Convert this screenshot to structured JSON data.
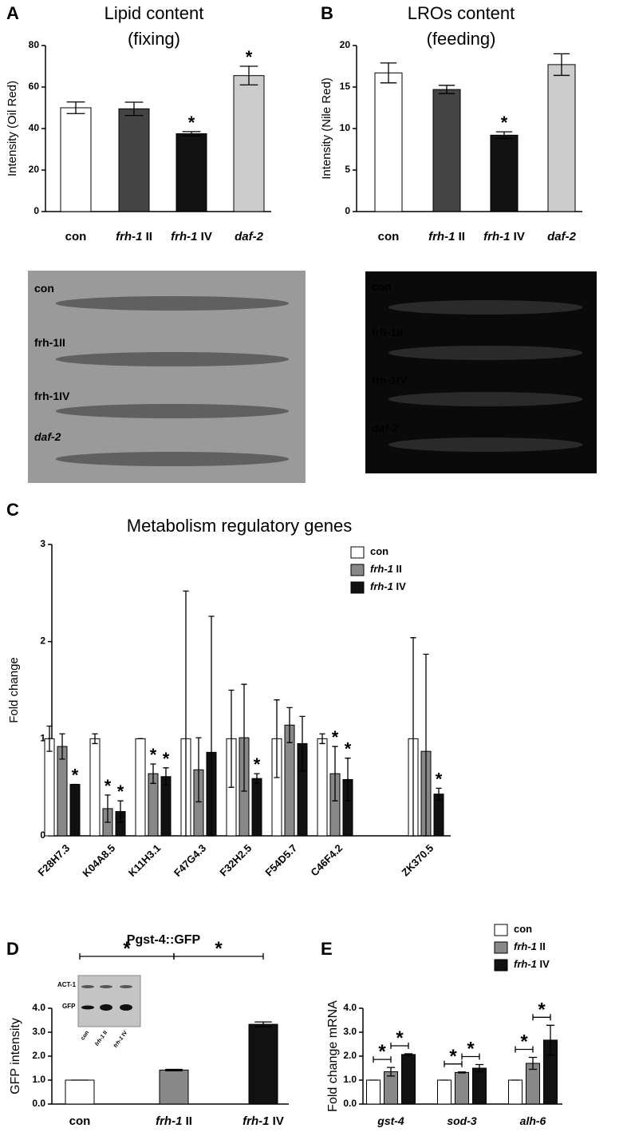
{
  "chart_data": [
    {
      "type": "bar",
      "panel": "A",
      "title": [
        "Lipid content",
        "(fixing)"
      ],
      "y_label": "Intensity (Oil Red)",
      "categories": [
        "con",
        "frh-1 II",
        "frh-1 IV",
        "daf-2"
      ],
      "values": [
        50,
        49.5,
        37.5,
        65.5
      ],
      "errors": [
        2.8,
        3.2,
        1,
        4.5
      ],
      "colors": [
        "#ffffff",
        "#444444",
        "#111111",
        "#cccccc"
      ],
      "ylim": [
        0,
        80
      ],
      "yticks": [
        0,
        20,
        40,
        60,
        80
      ],
      "annotations": [
        {
          "text": "*",
          "category": 2
        },
        {
          "text": "*",
          "category": 3
        }
      ],
      "image_labels": [
        "con",
        "frh-1II",
        "frh-1IV",
        "daf-2"
      ]
    },
    {
      "type": "bar",
      "panel": "B",
      "title": [
        "LROs content",
        "(feeding)"
      ],
      "y_label": "Intensity (Nile Red)",
      "categories": [
        "con",
        "frh-1 II",
        "frh-1 IV",
        "daf-2"
      ],
      "values": [
        16.7,
        14.7,
        9.2,
        17.7
      ],
      "errors": [
        1.2,
        0.5,
        0.4,
        1.3
      ],
      "colors": [
        "#ffffff",
        "#444444",
        "#111111",
        "#cccccc"
      ],
      "ylim": [
        0,
        20
      ],
      "yticks": [
        0,
        5,
        10,
        15,
        20
      ],
      "annotations": [
        {
          "text": "*",
          "category": 2
        }
      ],
      "image_labels": [
        "con",
        "frh-1II",
        "frh-1IV",
        "daf-2"
      ]
    },
    {
      "type": "bar",
      "panel": "C",
      "title": [
        "Metabolism regulatory genes"
      ],
      "y_label": "Fold change",
      "categories": [
        "F28H7.3",
        "K04A8.5",
        "K11H3.1",
        "F47G4.3",
        "F32H2.5",
        "F54D5.7",
        "C46F4.2",
        null,
        "ZK370.5"
      ],
      "series": [
        {
          "name": "con",
          "color": "#ffffff",
          "values": [
            1.0,
            1.0,
            1.0,
            1.0,
            1.0,
            1.0,
            1.0,
            null,
            1.0
          ],
          "errors": [
            0.13,
            0.05,
            0,
            1.52,
            0.5,
            0.4,
            0.05,
            null,
            1.04
          ]
        },
        {
          "name": "frh-1 II",
          "color": "#888888",
          "values": [
            0.92,
            0.28,
            0.64,
            0.68,
            1.01,
            1.14,
            0.64,
            null,
            0.87
          ],
          "errors": [
            0.13,
            0.14,
            0.1,
            0.33,
            0.55,
            0.18,
            0.28,
            null,
            1.0
          ]
        },
        {
          "name": "frh-1 IV",
          "color": "#111111",
          "values": [
            0.53,
            0.25,
            0.61,
            0.86,
            0.59,
            0.95,
            0.58,
            null,
            0.43
          ],
          "errors": [
            0,
            0.11,
            0.09,
            1.4,
            0.05,
            0.28,
            0.22,
            null,
            0.06
          ]
        }
      ],
      "ylim": [
        0,
        3
      ],
      "yticks": [
        0,
        1,
        2,
        3
      ],
      "legend": "upper right",
      "annotations": [
        {
          "text": "*",
          "category": 0,
          "series": 2
        },
        {
          "text": "*",
          "category": 1,
          "series": 1
        },
        {
          "text": "*",
          "category": 1,
          "series": 2
        },
        {
          "text": "*",
          "category": 2,
          "series": 1
        },
        {
          "text": "*",
          "category": 2,
          "series": 2
        },
        {
          "text": "*",
          "category": 4,
          "series": 2
        },
        {
          "text": "*",
          "category": 6,
          "series": 1
        },
        {
          "text": "*",
          "category": 6,
          "series": 2
        },
        {
          "text": "*",
          "category": 8,
          "series": 2
        }
      ]
    },
    {
      "type": "bar",
      "panel": "D",
      "title": [
        "Pgst-4::GFP"
      ],
      "y_label": "GFP intensity",
      "categories": [
        "con",
        "frh-1 II",
        "frh-1 IV"
      ],
      "values": [
        1.0,
        1.42,
        3.33
      ],
      "errors": [
        0,
        0.03,
        0.1
      ],
      "colors": [
        "#ffffff",
        "#888888",
        "#111111"
      ],
      "ylim": [
        0,
        4
      ],
      "yticks": [
        {
          "value": 0,
          "label": "0.0"
        },
        {
          "value": 1,
          "label": "1.0"
        },
        {
          "value": 2,
          "label": "2.0"
        },
        {
          "value": 3,
          "label": "3.0"
        },
        {
          "value": 4,
          "label": "4.0"
        }
      ],
      "brackets": [
        {
          "from": 0,
          "to": 1,
          "text": "*"
        },
        {
          "from": 1,
          "to": 2,
          "text": "*"
        }
      ],
      "inset_labels": [
        "ACT-1",
        "GFP",
        "con",
        "frh-1 II",
        "frh-1 IV"
      ]
    },
    {
      "type": "bar",
      "panel": "E",
      "title": [],
      "y_label": "Fold change mRNA",
      "categories": [
        "gst-4",
        "sod-3",
        "alh-6"
      ],
      "series": [
        {
          "name": "con",
          "color": "#ffffff",
          "values": [
            1,
            1,
            1
          ],
          "errors": [
            0,
            0,
            0
          ]
        },
        {
          "name": "frh-1 II",
          "color": "#888888",
          "values": [
            1.35,
            1.32,
            1.7
          ],
          "errors": [
            0.18,
            0.02,
            0.25
          ]
        },
        {
          "name": "frh-1 IV",
          "color": "#111111",
          "values": [
            2.07,
            1.5,
            2.67
          ],
          "errors": [
            0.03,
            0.15,
            0.62
          ]
        }
      ],
      "ylim": [
        0,
        4
      ],
      "legend": "upper right",
      "yticks": [
        {
          "value": 0,
          "label": "0.0"
        },
        {
          "value": 1,
          "label": "1.0"
        },
        {
          "value": 2,
          "label": "2.0"
        },
        {
          "value": 3,
          "label": "3.0"
        },
        {
          "value": 4,
          "label": "4.0"
        }
      ],
      "brackets": [
        {
          "category": 0,
          "from": 0,
          "to": 1,
          "text": "*"
        },
        {
          "category": 0,
          "from": 1,
          "to": 2,
          "text": "*"
        },
        {
          "category": 1,
          "from": 0,
          "to": 1,
          "text": "*"
        },
        {
          "category": 1,
          "from": 1,
          "to": 2,
          "text": "*"
        },
        {
          "category": 2,
          "from": 0,
          "to": 1,
          "text": "*"
        },
        {
          "category": 2,
          "from": 1,
          "to": 2,
          "text": "*"
        }
      ]
    }
  ]
}
